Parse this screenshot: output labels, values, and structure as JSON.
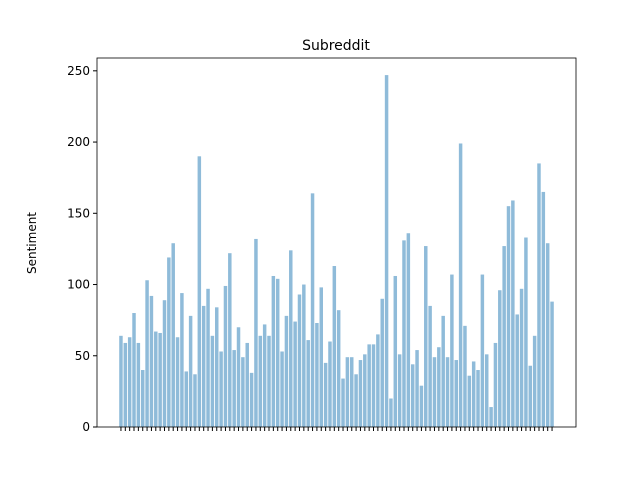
{
  "chart_data": {
    "type": "bar",
    "title": "Subreddit",
    "y_label": "Sentiment",
    "categories": [
      null,
      null,
      null,
      null,
      null,
      null,
      null,
      null,
      null,
      null,
      null,
      null,
      null,
      null,
      null,
      null,
      null,
      null,
      null,
      null,
      null,
      null,
      null,
      null,
      null,
      null,
      null,
      null,
      null,
      null,
      null,
      null,
      null,
      null,
      null,
      null,
      null,
      null,
      null,
      null,
      null,
      null,
      null,
      null,
      null,
      null,
      null,
      null,
      null,
      null,
      null,
      null,
      null,
      null,
      null,
      null,
      null,
      null,
      null,
      null,
      null,
      null,
      null,
      null,
      null,
      null,
      null,
      null,
      null,
      null,
      null,
      null,
      null,
      null,
      null,
      null,
      null,
      null,
      null,
      null,
      null,
      null,
      null,
      null,
      null,
      null,
      null,
      null,
      null,
      null,
      null,
      null,
      null,
      null,
      null,
      null,
      null,
      null,
      null,
      null
    ],
    "values": [
      64,
      59,
      63,
      80,
      59,
      40,
      103,
      92,
      67,
      66,
      89,
      119,
      129,
      63,
      94,
      39,
      78,
      37,
      190,
      85,
      97,
      64,
      84,
      53,
      99,
      122,
      54,
      70,
      49,
      59,
      38,
      132,
      64,
      72,
      64,
      106,
      104,
      53,
      78,
      124,
      74,
      93,
      100,
      61,
      164,
      73,
      98,
      45,
      60,
      113,
      82,
      34,
      49,
      49,
      37,
      47,
      51,
      58,
      58,
      65,
      90,
      247,
      20,
      106,
      51,
      131,
      136,
      44,
      54,
      29,
      127,
      85,
      49,
      56,
      78,
      49,
      107,
      47,
      199,
      71,
      36,
      46,
      40,
      107,
      51,
      14,
      59,
      96,
      127,
      155,
      159,
      79,
      97,
      133,
      43,
      64,
      185,
      165,
      129,
      88
    ],
    "color": "#8fbbd9",
    "ylim": [
      0,
      259
    ],
    "yticks": [
      0,
      50,
      100,
      150,
      200,
      250
    ]
  }
}
